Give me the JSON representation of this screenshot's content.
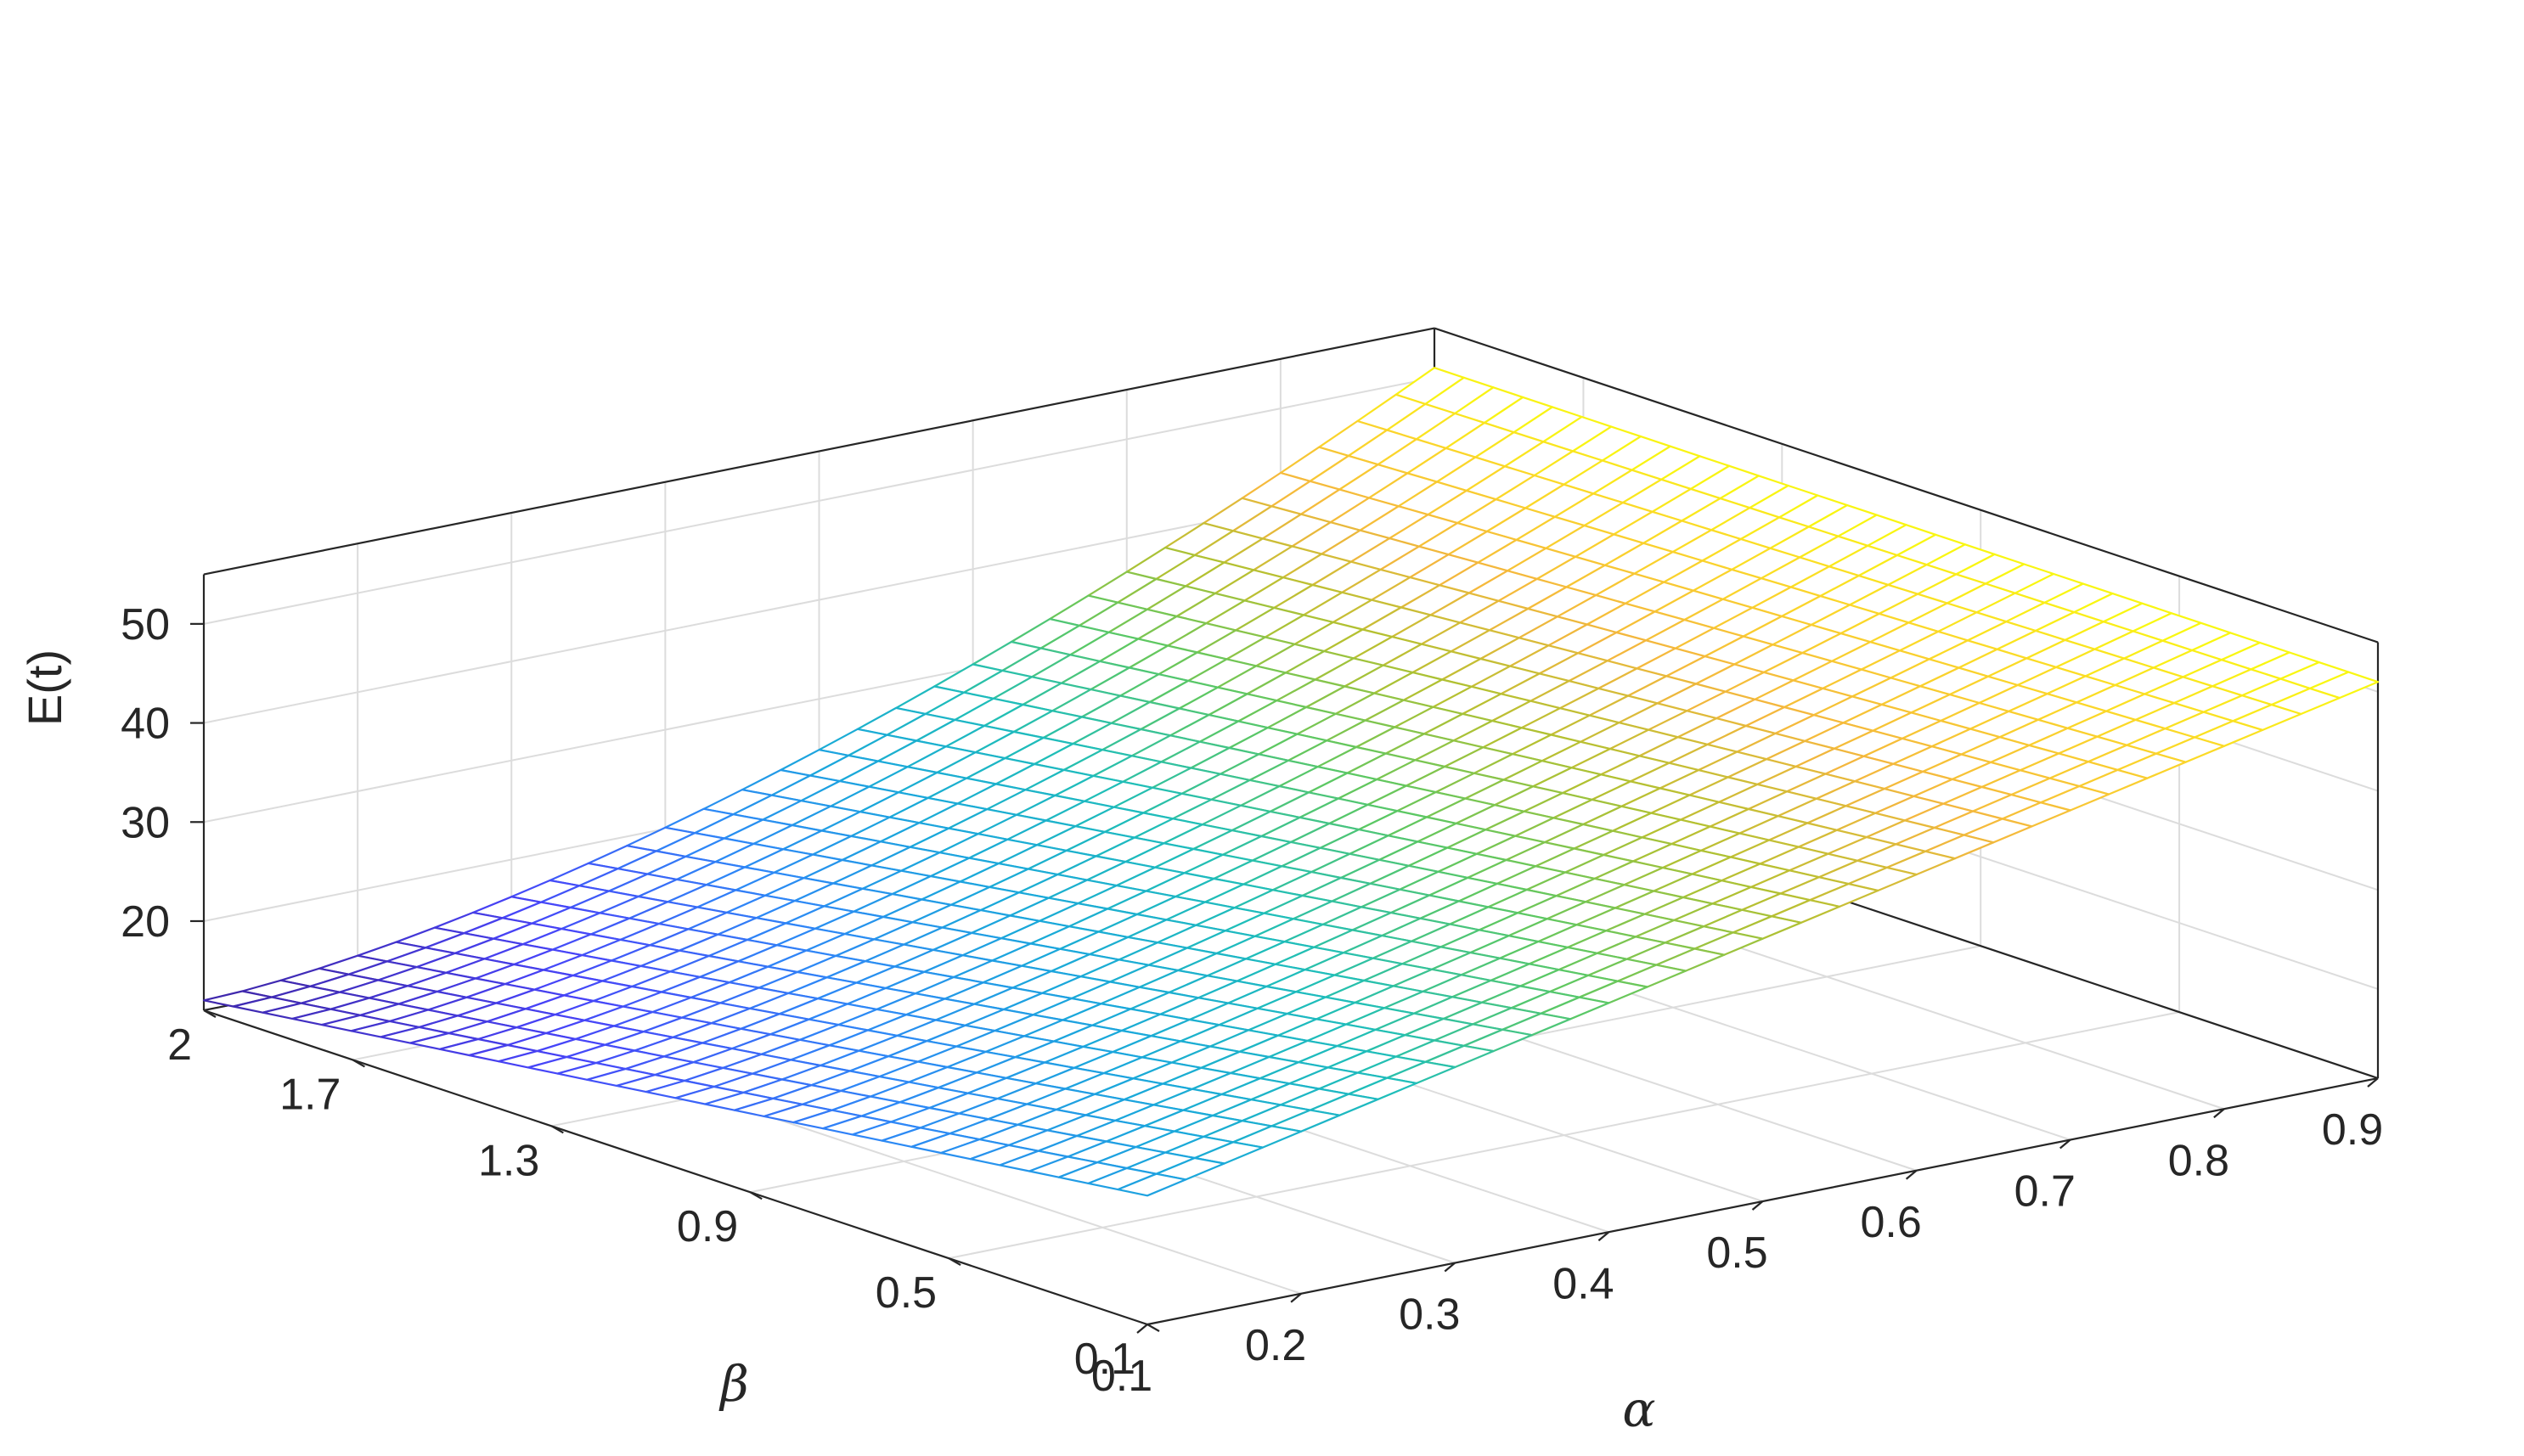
{
  "chart_data": {
    "type": "surface",
    "xlabel": "α",
    "ylabel": "β",
    "zlabel": "E(t)",
    "xlim": [
      0.1,
      0.9
    ],
    "ylim": [
      0.1,
      2
    ],
    "zlim": [
      11,
      55
    ],
    "x_ticks": [
      "0.1",
      "0.2",
      "0.3",
      "0.4",
      "0.5",
      "0.6",
      "0.7",
      "0.8",
      "0.9"
    ],
    "y_ticks": [
      "0.1",
      "0.5",
      "0.9",
      "1.3",
      "1.7",
      "2"
    ],
    "z_ticks": [
      "20",
      "30",
      "40",
      "50"
    ],
    "x_tick_values": [
      0.1,
      0.2,
      0.3,
      0.4,
      0.5,
      0.6,
      0.7,
      0.8,
      0.9
    ],
    "y_tick_values": [
      0.1,
      0.5,
      0.9,
      1.3,
      1.7,
      2.0
    ],
    "z_tick_values": [
      20,
      30,
      40,
      50
    ],
    "grid": true,
    "colormap": "parula",
    "colormap_stops": [
      "#3e26a8",
      "#4743f8",
      "#2e87f7",
      "#1aa8db",
      "#1fbeb9",
      "#5cc863",
      "#b3c131",
      "#f4b73e",
      "#fbd62a",
      "#f9fb0e"
    ],
    "mesh_resolution": 32,
    "corner_values": [
      {
        "alpha": 0.1,
        "beta": 2.0,
        "E": 12.0
      },
      {
        "alpha": 0.1,
        "beta": 0.1,
        "E": 24.0
      },
      {
        "alpha": 0.9,
        "beta": 2.0,
        "E": 51.0
      },
      {
        "alpha": 0.9,
        "beta": 0.1,
        "E": 51.0
      }
    ],
    "surface_description": "E increases with alpha; minimum near alpha=0.1, beta=2; maximum around alpha=0.9"
  }
}
